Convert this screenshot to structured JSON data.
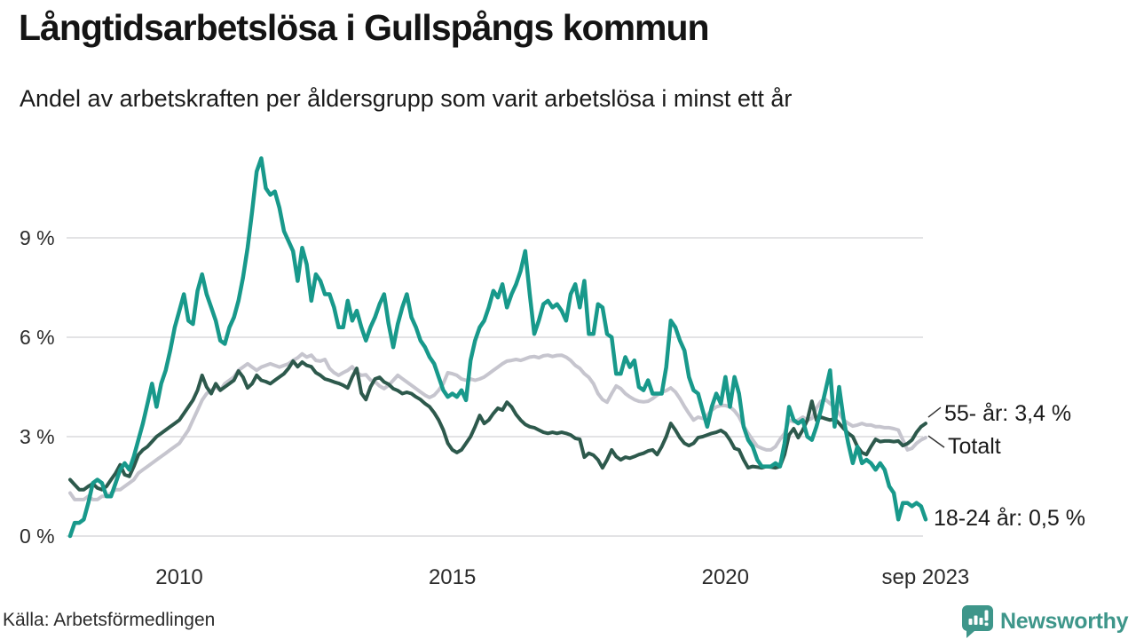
{
  "header": {
    "title": "Långtidsarbetslösa i Gullspångs kommun",
    "subtitle": "Andel av arbetskraften per åldersgrupp som varit arbetslösa i minst ett år"
  },
  "footer": {
    "source": "Källa: Arbetsförmedlingen",
    "brand": "Newsworthy",
    "brand_color": "#3e968a"
  },
  "chart_data": {
    "type": "line",
    "title": "Långtidsarbetslösa i Gullspångs kommun",
    "subtitle": "Andel av arbetskraften per åldersgrupp som varit arbetslösa i minst ett år",
    "unit": "percent of labour force",
    "frequency": "monthly",
    "x_start_year": 2008.0,
    "x_end_year": 2023.6667,
    "x_start_label": "jan 2008",
    "x_end_label": "sep 2023",
    "ylim": [
      0,
      11.6
    ],
    "grid": "horizontal",
    "yticks": [
      {
        "value": 0,
        "label": "0 %"
      },
      {
        "value": 3,
        "label": "3 %"
      },
      {
        "value": 6,
        "label": "6 %"
      },
      {
        "value": 9,
        "label": "9 %"
      }
    ],
    "xticks": [
      {
        "year": 2010.0,
        "label": "2010"
      },
      {
        "year": 2015.0,
        "label": "2015"
      },
      {
        "year": 2020.0,
        "label": "2020"
      },
      {
        "year": 2023.6667,
        "label": "sep 2023"
      }
    ],
    "annotations": [
      {
        "text": "55- år: 3,4 %",
        "series": "55- år",
        "end_value": 3.4,
        "leader": true
      },
      {
        "text": "Totalt",
        "series": "Totalt",
        "end_value": 2.97,
        "leader": true
      },
      {
        "text": "18-24 år: 0,5 %",
        "series": "18-24 år",
        "end_value": 0.5,
        "leader": false
      }
    ],
    "series": [
      {
        "name": "Totalt",
        "color": "#c6c5ce",
        "stroke_width": 4,
        "values": [
          1.3,
          1.1,
          1.1,
          1.1,
          1.2,
          1.1,
          1.1,
          1.2,
          1.2,
          1.3,
          1.4,
          1.4,
          1.5,
          1.6,
          1.7,
          1.9,
          2.0,
          2.1,
          2.2,
          2.3,
          2.4,
          2.5,
          2.6,
          2.7,
          2.8,
          3.0,
          3.2,
          3.5,
          3.8,
          4.1,
          4.3,
          4.4,
          4.5,
          4.4,
          4.6,
          4.7,
          4.8,
          5.0,
          5.1,
          5.2,
          5.1,
          5.0,
          5.1,
          5.15,
          5.2,
          5.15,
          5.1,
          5.15,
          5.2,
          5.3,
          5.38,
          5.5,
          5.4,
          5.46,
          5.3,
          5.28,
          5.33,
          5.06,
          4.93,
          4.85,
          4.93,
          5.0,
          5.11,
          4.93,
          4.85,
          4.87,
          4.71,
          4.66,
          4.53,
          4.45,
          4.55,
          4.7,
          4.85,
          4.75,
          4.65,
          4.55,
          4.45,
          4.35,
          4.25,
          4.18,
          4.25,
          4.4,
          4.6,
          4.93,
          4.9,
          4.85,
          4.74,
          4.7,
          4.74,
          4.7,
          4.74,
          4.8,
          4.9,
          5.0,
          5.1,
          5.2,
          5.28,
          5.3,
          5.33,
          5.3,
          5.35,
          5.4,
          5.42,
          5.38,
          5.44,
          5.46,
          5.42,
          5.45,
          5.46,
          5.4,
          5.3,
          5.15,
          5.06,
          4.9,
          4.79,
          4.6,
          4.3,
          4.12,
          4.04,
          4.3,
          4.53,
          4.45,
          4.3,
          4.2,
          4.12,
          4.07,
          4.05,
          4.07,
          4.15,
          4.25,
          4.34,
          4.39,
          4.47,
          4.35,
          4.15,
          3.91,
          3.7,
          3.5,
          3.59,
          3.55,
          3.64,
          3.8,
          3.9,
          3.94,
          3.94,
          3.9,
          3.78,
          3.6,
          3.32,
          3.1,
          2.9,
          2.71,
          2.65,
          2.6,
          2.6,
          2.7,
          2.92,
          3.1,
          3.5,
          3.45,
          3.5,
          3.59,
          3.5,
          3.55,
          3.86,
          4.07,
          4.12,
          4.0,
          3.9,
          3.7,
          3.5,
          3.4,
          3.32,
          3.35,
          3.4,
          3.35,
          3.35,
          3.3,
          3.3,
          3.27,
          3.27,
          3.24,
          3.2,
          2.9,
          2.6,
          2.65,
          2.8,
          2.9,
          2.97
        ]
      },
      {
        "name": "55- år",
        "color": "#2d594c",
        "stroke_width": 4,
        "values": [
          1.7,
          1.55,
          1.4,
          1.4,
          1.5,
          1.58,
          1.45,
          1.4,
          1.5,
          1.7,
          1.9,
          2.15,
          1.85,
          1.8,
          2.1,
          2.45,
          2.6,
          2.7,
          2.85,
          3.0,
          3.1,
          3.2,
          3.3,
          3.4,
          3.5,
          3.7,
          3.9,
          4.1,
          4.4,
          4.85,
          4.5,
          4.3,
          4.6,
          4.4,
          4.5,
          4.6,
          4.7,
          4.98,
          4.8,
          4.47,
          4.6,
          4.85,
          4.7,
          4.66,
          4.6,
          4.7,
          4.8,
          4.9,
          5.06,
          5.28,
          5.11,
          5.25,
          5.15,
          5.11,
          4.93,
          4.85,
          4.74,
          4.7,
          4.65,
          4.61,
          4.55,
          4.47,
          4.8,
          5.06,
          4.31,
          4.12,
          4.5,
          4.74,
          4.79,
          4.65,
          4.58,
          4.45,
          4.39,
          4.3,
          4.34,
          4.3,
          4.2,
          4.12,
          4.0,
          3.9,
          3.72,
          3.5,
          3.2,
          2.8,
          2.6,
          2.52,
          2.6,
          2.8,
          3.0,
          3.3,
          3.64,
          3.4,
          3.5,
          3.7,
          3.86,
          3.8,
          4.04,
          3.9,
          3.67,
          3.5,
          3.37,
          3.3,
          3.27,
          3.2,
          3.13,
          3.1,
          3.13,
          3.1,
          3.13,
          3.1,
          3.05,
          2.95,
          2.92,
          2.38,
          2.5,
          2.44,
          2.3,
          2.06,
          2.3,
          2.6,
          2.4,
          2.3,
          2.38,
          2.35,
          2.4,
          2.46,
          2.5,
          2.57,
          2.6,
          2.46,
          2.7,
          3.0,
          3.4,
          3.2,
          2.97,
          2.8,
          2.73,
          2.8,
          2.97,
          3.0,
          3.05,
          3.1,
          3.13,
          3.19,
          3.1,
          2.9,
          2.65,
          2.6,
          2.3,
          2.06,
          2.1,
          2.08,
          2.06,
          2.1,
          2.08,
          2.06,
          2.1,
          2.46,
          3.05,
          3.24,
          2.97,
          3.2,
          3.5,
          4.07,
          3.5,
          3.59,
          3.54,
          3.5,
          3.54,
          3.4,
          3.24,
          3.1,
          3.0,
          2.7,
          2.52,
          2.46,
          2.7,
          2.92,
          2.85,
          2.87,
          2.87,
          2.85,
          2.87,
          2.73,
          2.79,
          2.9,
          3.13,
          3.3,
          3.4
        ]
      },
      {
        "name": "18-24 år",
        "color": "#18998b",
        "stroke_width": 4.5,
        "values": [
          0.0,
          0.4,
          0.4,
          0.5,
          1.0,
          1.6,
          1.7,
          1.6,
          1.2,
          1.2,
          1.6,
          2.0,
          2.2,
          2.0,
          2.4,
          2.9,
          3.4,
          4.0,
          4.6,
          3.9,
          4.6,
          5.0,
          5.6,
          6.3,
          6.8,
          7.3,
          6.5,
          6.4,
          7.4,
          7.9,
          7.3,
          6.9,
          6.5,
          5.9,
          5.8,
          6.3,
          6.6,
          7.1,
          7.8,
          8.7,
          9.8,
          11.0,
          11.4,
          10.5,
          10.3,
          10.4,
          9.9,
          9.2,
          8.9,
          8.6,
          7.7,
          8.7,
          8.2,
          7.1,
          7.9,
          7.7,
          7.3,
          7.3,
          6.9,
          6.3,
          6.3,
          7.1,
          6.5,
          6.8,
          6.3,
          5.9,
          6.3,
          6.6,
          7.0,
          7.3,
          6.4,
          5.7,
          6.4,
          6.9,
          7.3,
          6.6,
          6.3,
          5.9,
          5.7,
          5.4,
          5.2,
          4.8,
          4.4,
          4.2,
          4.3,
          4.2,
          4.4,
          4.1,
          5.3,
          5.9,
          6.3,
          6.5,
          6.9,
          7.4,
          7.2,
          7.6,
          6.9,
          7.3,
          7.6,
          8.0,
          8.6,
          7.3,
          6.1,
          6.5,
          7.0,
          7.1,
          6.9,
          7.0,
          6.8,
          6.5,
          7.3,
          7.6,
          6.9,
          7.7,
          6.1,
          6.1,
          7.0,
          6.9,
          6.1,
          6.0,
          4.9,
          4.9,
          5.4,
          5.1,
          5.3,
          4.5,
          4.4,
          4.7,
          4.3,
          4.3,
          4.3,
          5.1,
          6.5,
          6.3,
          5.9,
          5.6,
          4.8,
          4.4,
          4.3,
          3.8,
          3.3,
          3.9,
          4.3,
          4.0,
          4.8,
          3.9,
          4.8,
          4.3,
          3.3,
          2.9,
          2.7,
          2.3,
          2.1,
          2.1,
          2.1,
          2.2,
          2.1,
          2.8,
          3.9,
          3.5,
          3.4,
          3.5,
          3.0,
          2.9,
          3.3,
          3.8,
          4.4,
          5.0,
          3.3,
          4.5,
          3.5,
          2.8,
          2.2,
          2.7,
          2.2,
          2.3,
          2.2,
          2.0,
          2.2,
          2.0,
          1.5,
          1.3,
          0.5,
          1.0,
          1.0,
          0.9,
          1.0,
          0.9,
          0.5
        ]
      }
    ]
  }
}
